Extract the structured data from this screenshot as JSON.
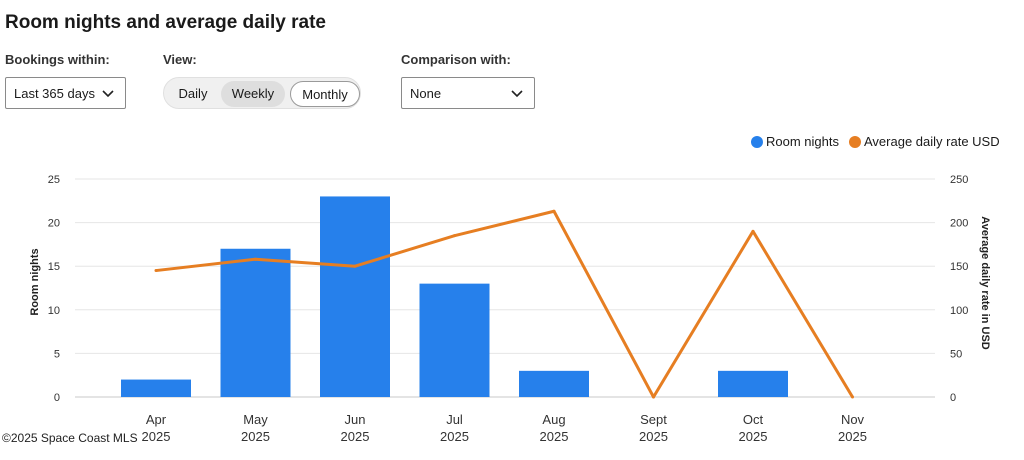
{
  "header": {
    "title": "Room nights and average daily rate"
  },
  "controls": {
    "bookings_label": "Bookings within:",
    "bookings_value": "Last 365 days",
    "view_label": "View:",
    "view_options": [
      "Daily",
      "Weekly",
      "Monthly"
    ],
    "view_selected": "Monthly",
    "comparison_label": "Comparison with:",
    "comparison_value": "None"
  },
  "legend": {
    "room_nights": "Room nights",
    "adr": "Average daily rate USD"
  },
  "watermark": "©2025 Space Coast MLS",
  "colors": {
    "bar": "#2680eb",
    "line": "#e67e22",
    "grid": "#e6e6e6"
  },
  "chart_data": {
    "type": "bar+line",
    "categories": [
      [
        "Apr",
        "2025"
      ],
      [
        "May",
        "2025"
      ],
      [
        "Jun",
        "2025"
      ],
      [
        "Jul",
        "2025"
      ],
      [
        "Aug",
        "2025"
      ],
      [
        "Sept",
        "2025"
      ],
      [
        "Oct",
        "2025"
      ],
      [
        "Nov",
        "2025"
      ]
    ],
    "series": [
      {
        "name": "Room nights",
        "type": "bar",
        "axis": "left",
        "values": [
          2,
          17,
          23,
          13,
          3,
          0,
          3,
          0
        ]
      },
      {
        "name": "Average daily rate USD",
        "type": "line",
        "axis": "right",
        "values": [
          145,
          158,
          150,
          185,
          213,
          0,
          190,
          0
        ]
      }
    ],
    "ylabel": "Room nights",
    "y2label": "Average daily rate in USD",
    "ylim": [
      0,
      25
    ],
    "y2lim": [
      0,
      250
    ],
    "yticks": [
      0,
      5,
      10,
      15,
      20,
      25
    ],
    "y2ticks": [
      0,
      50,
      100,
      150,
      200,
      250
    ],
    "grid": true,
    "legend_position": "top-right"
  }
}
